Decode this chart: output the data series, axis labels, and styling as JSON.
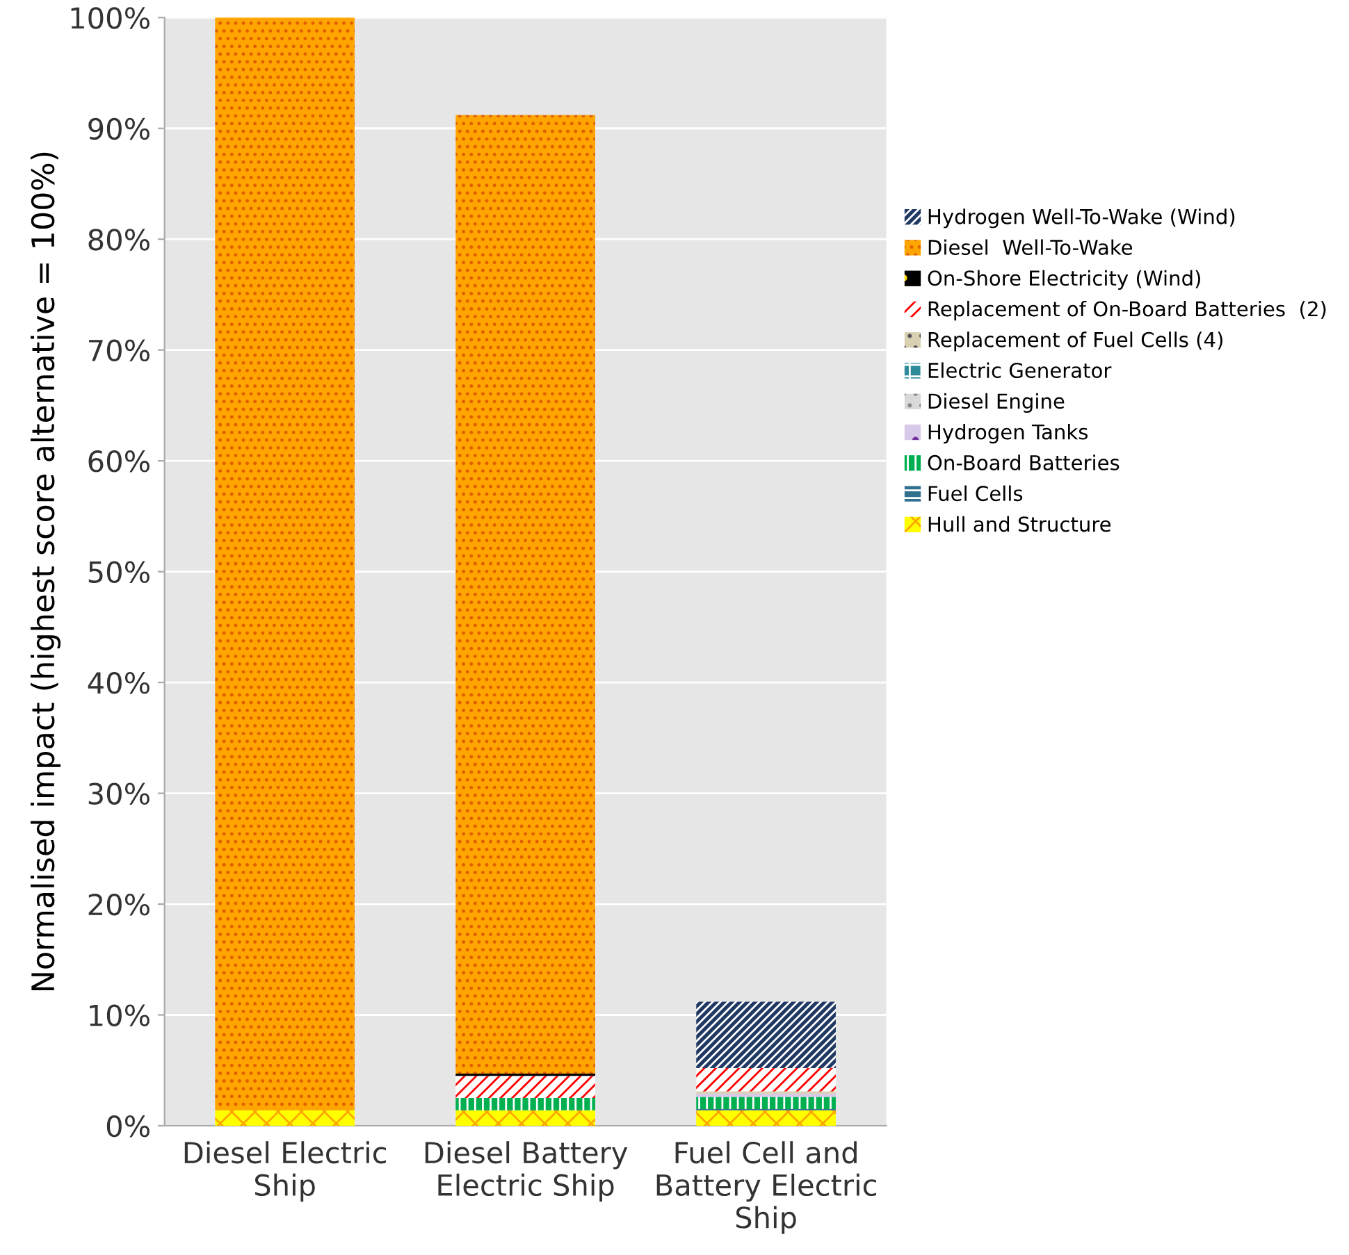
{
  "chart_data": {
    "type": "bar",
    "stacked": true,
    "ylabel": "Normalised impact (highest score alternative = 100%)",
    "categories": [
      "Diesel Electric Ship",
      "Diesel Battery Electric Ship",
      "Fuel Cell and Battery Electric Ship"
    ],
    "series": [
      {
        "name": "Hull and Structure",
        "color": "#ffff00",
        "values": [
          1.4,
          1.4,
          1.4
        ]
      },
      {
        "name": "Fuel Cells",
        "color": "#31708f",
        "values": [
          null,
          null,
          0.1
        ]
      },
      {
        "name": "On-Board Batteries",
        "color": "#00b050",
        "values": [
          null,
          1.1,
          1.1
        ]
      },
      {
        "name": "Hydrogen Tanks",
        "color": "#d9c9e8",
        "values": [
          null,
          null,
          0.3
        ]
      },
      {
        "name": "Diesel Engine",
        "color": "#d9d9d9",
        "values": [
          null,
          null,
          null
        ]
      },
      {
        "name": "Electric Generator",
        "color": "#2e8b9a",
        "values": [
          null,
          null,
          null
        ]
      },
      {
        "name": "Replacement of Fuel Cells (4)",
        "color": "#d8d0b0",
        "values": [
          null,
          null,
          0.2
        ]
      },
      {
        "name": "Replacement of On-Board Batteries  (2)",
        "color": "#ffffff",
        "values": [
          null,
          2.0,
          2.1
        ]
      },
      {
        "name": "On-Shore Electricity (Wind)",
        "color": "#000000",
        "values": [
          null,
          0.2,
          null
        ]
      },
      {
        "name": "Diesel  Well-To-Wake",
        "color": "#ffa500",
        "values": [
          98.6,
          86.5,
          null
        ]
      },
      {
        "name": "Hydrogen Well-To-Wake (Wind)",
        "color": "#1f3864",
        "values": [
          null,
          null,
          6.0
        ]
      }
    ],
    "ylim": [
      0,
      100
    ],
    "yticks": [
      {
        "value": 0,
        "label": "0%"
      },
      {
        "value": 10,
        "label": "10%"
      },
      {
        "value": 20,
        "label": "20%"
      },
      {
        "value": 30,
        "label": "30%"
      },
      {
        "value": 40,
        "label": "40%"
      },
      {
        "value": 50,
        "label": "50%"
      },
      {
        "value": 60,
        "label": "60%"
      },
      {
        "value": 70,
        "label": "70%"
      },
      {
        "value": 80,
        "label": "80%"
      },
      {
        "value": 90,
        "label": "90%"
      },
      {
        "value": 100,
        "label": "100%"
      }
    ],
    "grid": "y",
    "legend": "right"
  }
}
